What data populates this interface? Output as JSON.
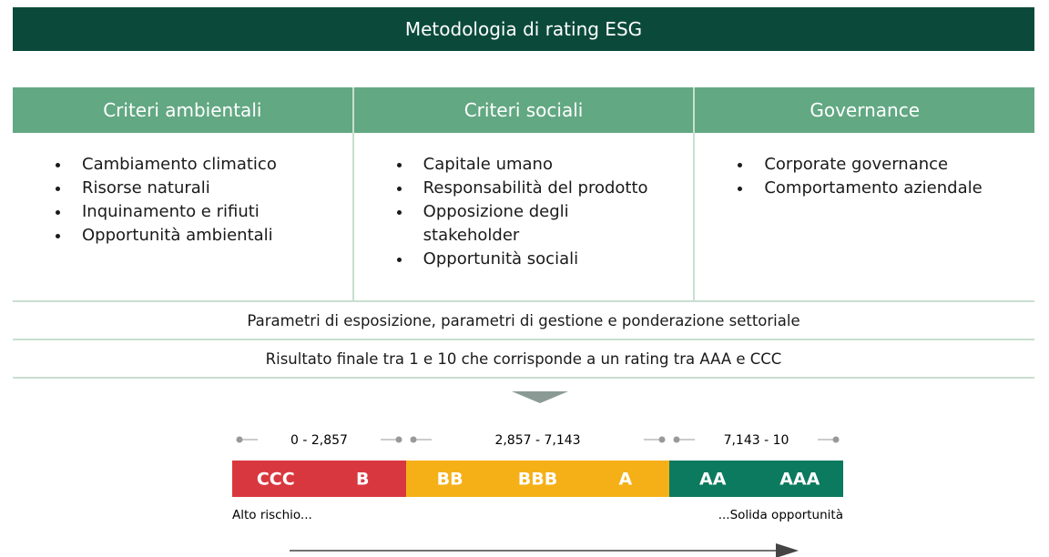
{
  "header": {
    "title": "Metodologia di rating ESG"
  },
  "table": {
    "columns": [
      {
        "title": "Criteri ambientali",
        "items": [
          "Cambiamento climatico",
          "Risorse naturali",
          "Inquinamento e rifiuti",
          "Opportunità ambientali"
        ]
      },
      {
        "title": "Criteri sociali",
        "items": [
          "Capitale umano",
          "Responsabilità del prodotto",
          "Opposizione degli stakeholder",
          "Opportunità sociali"
        ]
      },
      {
        "title": "Governance",
        "items": [
          "Corporate governance",
          "Comportamento aziendale"
        ]
      }
    ],
    "rows": [
      "Parametri di esposizione, parametri di gestione e ponderazione settoriale",
      "Risultato finale tra 1 e 10 che corrisponde a un rating tra AAA e CCC"
    ]
  },
  "scale": {
    "ranges": [
      {
        "label": "0 - 2,857",
        "color": "#d9373f",
        "ratings": [
          "CCC",
          "B"
        ]
      },
      {
        "label": "2,857 - 7,143",
        "color": "#f5b018",
        "ratings": [
          "BB",
          "BBB",
          "A"
        ]
      },
      {
        "label": "7,143 - 10",
        "color": "#0b7a5f",
        "ratings": [
          "AA",
          "AAA"
        ]
      }
    ],
    "low_label": "Alto rischio...",
    "high_label": "...Solida opportunità"
  }
}
